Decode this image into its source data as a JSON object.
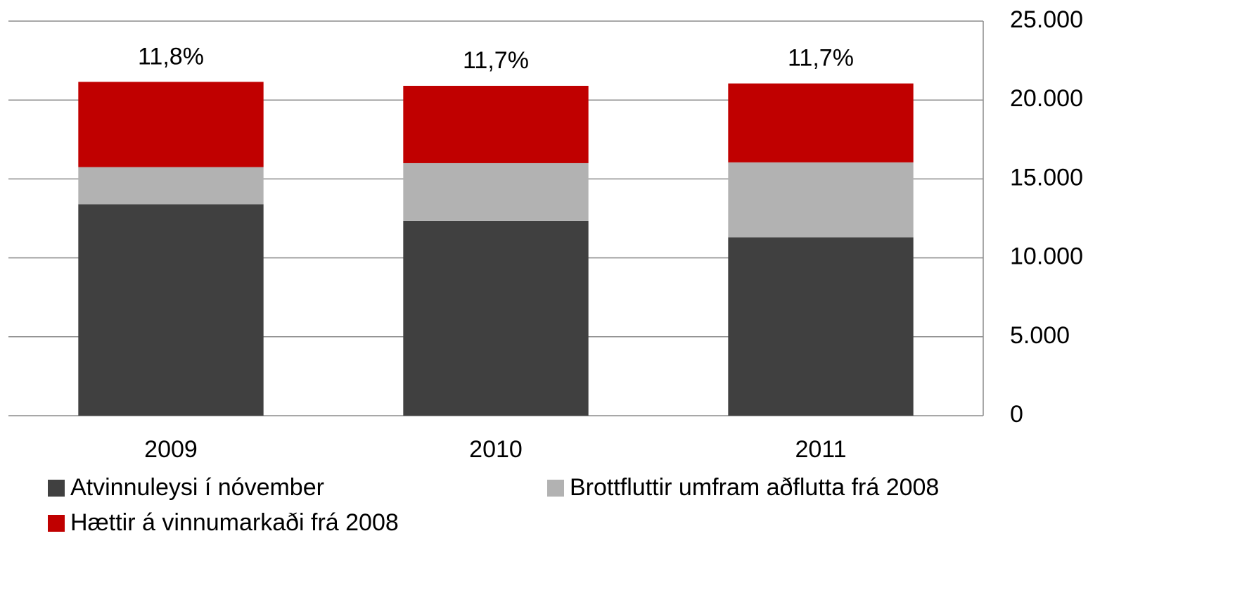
{
  "chart_data": {
    "type": "stacked_bar",
    "categories": [
      "2009",
      "2010",
      "2011"
    ],
    "series": [
      {
        "name": "Atvinnuleysi í nóvember",
        "color": "#404040",
        "values": [
          13400,
          12350,
          11300
        ]
      },
      {
        "name": "Brottfluttir umfram aðflutta frá 2008",
        "color": "#b2b2b2",
        "values": [
          2350,
          3650,
          4750
        ]
      },
      {
        "name": "Hættir á vinnumarkaði frá 2008",
        "color": "#c00000",
        "values": [
          5400,
          4900,
          5000
        ]
      }
    ],
    "annotations": [
      "11,8%",
      "11,7%",
      "11,7%"
    ],
    "ylim": [
      0,
      25000
    ],
    "yticks": [
      0,
      {
        "value": 5000,
        "label": "5.000"
      },
      {
        "value": 10000,
        "label": "10.000"
      },
      {
        "value": 15000,
        "label": "15.000"
      },
      {
        "value": 20000,
        "label": "20.000"
      },
      {
        "value": 25000,
        "label": "25.000"
      }
    ],
    "grid": true,
    "y_axis_side": "right",
    "legend": "bottom"
  }
}
